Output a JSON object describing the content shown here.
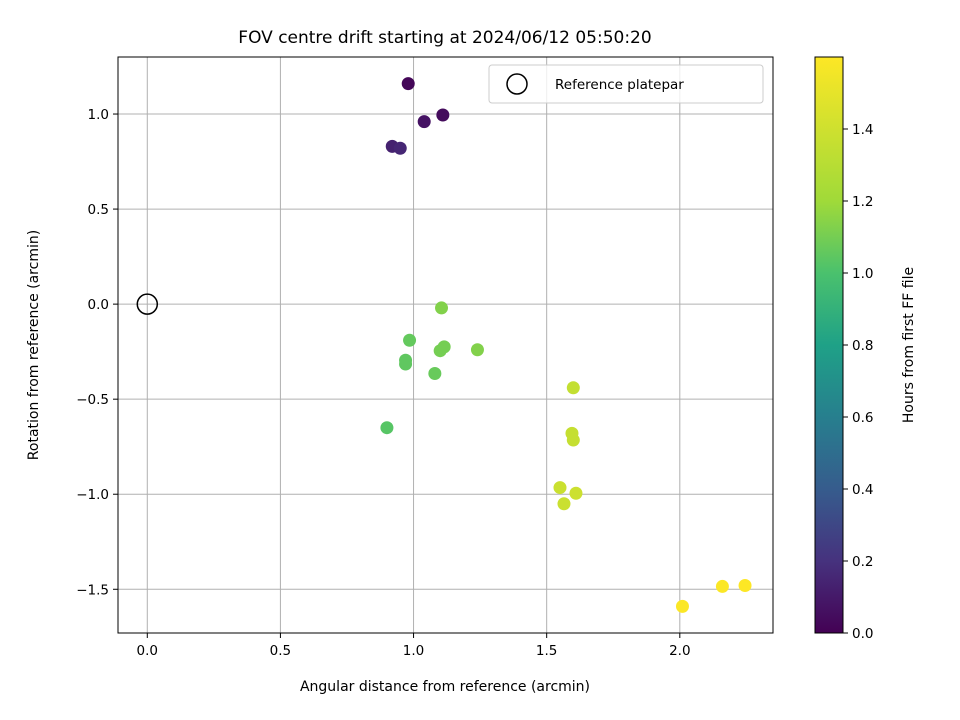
{
  "chart_data": {
    "type": "scatter",
    "title": "FOV centre drift starting at 2024/06/12 05:50:20",
    "xlabel": "Angular distance from reference (arcmin)",
    "ylabel": "Rotation from reference (arcmin)",
    "colorbar_label": "Hours from first FF file",
    "xlim": [
      -0.11,
      2.35
    ],
    "ylim": [
      -1.73,
      1.3
    ],
    "clim": [
      0.0,
      1.6
    ],
    "x_ticks": [
      "0.0",
      "0.5",
      "1.0",
      "1.5",
      "2.0"
    ],
    "y_ticks": [
      "1.0",
      "0.5",
      "0.0",
      "−0.5",
      "−1.0",
      "−1.5"
    ],
    "colorbar_ticks": [
      "0.0",
      "0.2",
      "0.4",
      "0.6",
      "0.8",
      "1.0",
      "1.2",
      "1.4"
    ],
    "grid": true,
    "colormap": "viridis",
    "legend": {
      "label": "Reference platepar",
      "placement": "upper-right"
    },
    "reference_point": {
      "x": 0.0,
      "y": 0.0
    },
    "points": [
      {
        "x": 0.98,
        "y": 1.16,
        "hours": 0.02
      },
      {
        "x": 1.11,
        "y": 0.995,
        "hours": 0.04
      },
      {
        "x": 1.04,
        "y": 0.96,
        "hours": 0.07
      },
      {
        "x": 0.92,
        "y": 0.83,
        "hours": 0.13
      },
      {
        "x": 0.95,
        "y": 0.82,
        "hours": 0.15
      },
      {
        "x": 1.105,
        "y": -0.02,
        "hours": 1.13
      },
      {
        "x": 0.985,
        "y": -0.19,
        "hours": 1.06
      },
      {
        "x": 1.115,
        "y": -0.225,
        "hours": 1.1
      },
      {
        "x": 1.1,
        "y": -0.245,
        "hours": 1.1
      },
      {
        "x": 1.24,
        "y": -0.24,
        "hours": 1.13
      },
      {
        "x": 0.97,
        "y": -0.295,
        "hours": 1.05
      },
      {
        "x": 0.97,
        "y": -0.315,
        "hours": 1.05
      },
      {
        "x": 1.08,
        "y": -0.365,
        "hours": 1.07
      },
      {
        "x": 0.9,
        "y": -0.65,
        "hours": 1.03
      },
      {
        "x": 1.6,
        "y": -0.44,
        "hours": 1.35
      },
      {
        "x": 1.595,
        "y": -0.68,
        "hours": 1.36
      },
      {
        "x": 1.6,
        "y": -0.715,
        "hours": 1.36
      },
      {
        "x": 1.55,
        "y": -0.965,
        "hours": 1.38
      },
      {
        "x": 1.61,
        "y": -0.995,
        "hours": 1.39
      },
      {
        "x": 1.565,
        "y": -1.05,
        "hours": 1.38
      },
      {
        "x": 2.01,
        "y": -1.59,
        "hours": 1.59
      },
      {
        "x": 2.16,
        "y": -1.485,
        "hours": 1.59
      },
      {
        "x": 2.245,
        "y": -1.48,
        "hours": 1.6
      }
    ]
  }
}
